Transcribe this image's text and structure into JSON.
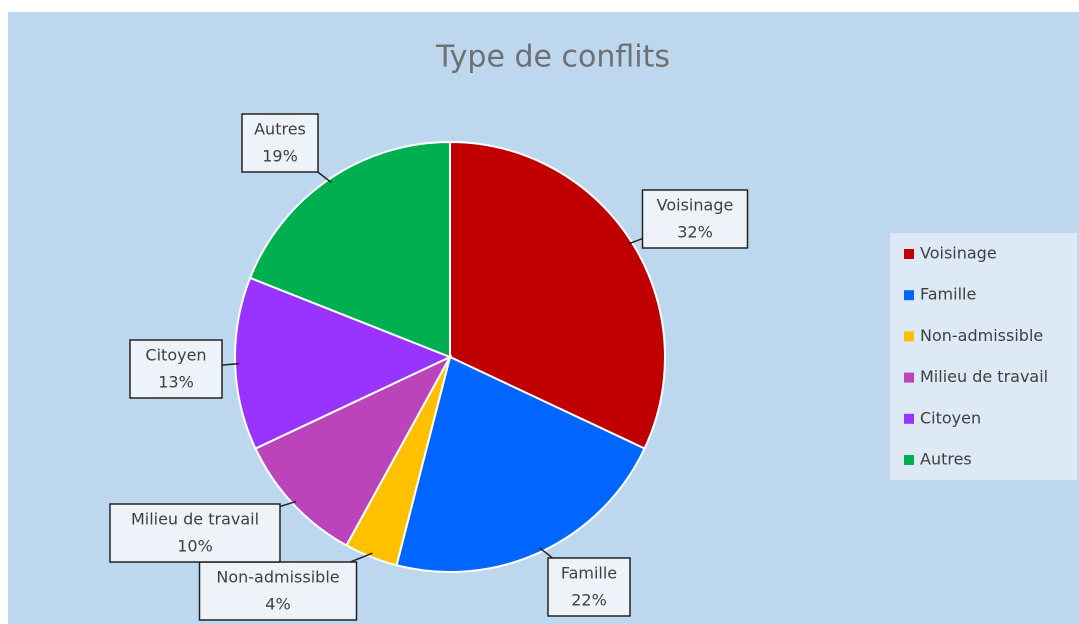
{
  "chart_data": {
    "type": "pie",
    "title": "Type de conflits",
    "categories": [
      "Voisinage",
      "Famille",
      "Non-admissible",
      "Milieu de travail",
      "Citoyen",
      "Autres"
    ],
    "values": [
      32,
      22,
      4,
      10,
      13,
      19
    ],
    "value_labels": [
      "32%",
      "22%",
      "4%",
      "10%",
      "13%",
      "19%"
    ],
    "colors": [
      "#c00000",
      "#0066ff",
      "#ffc000",
      "#bb44bb",
      "#9933ff",
      "#00b050"
    ],
    "legend": "right"
  }
}
